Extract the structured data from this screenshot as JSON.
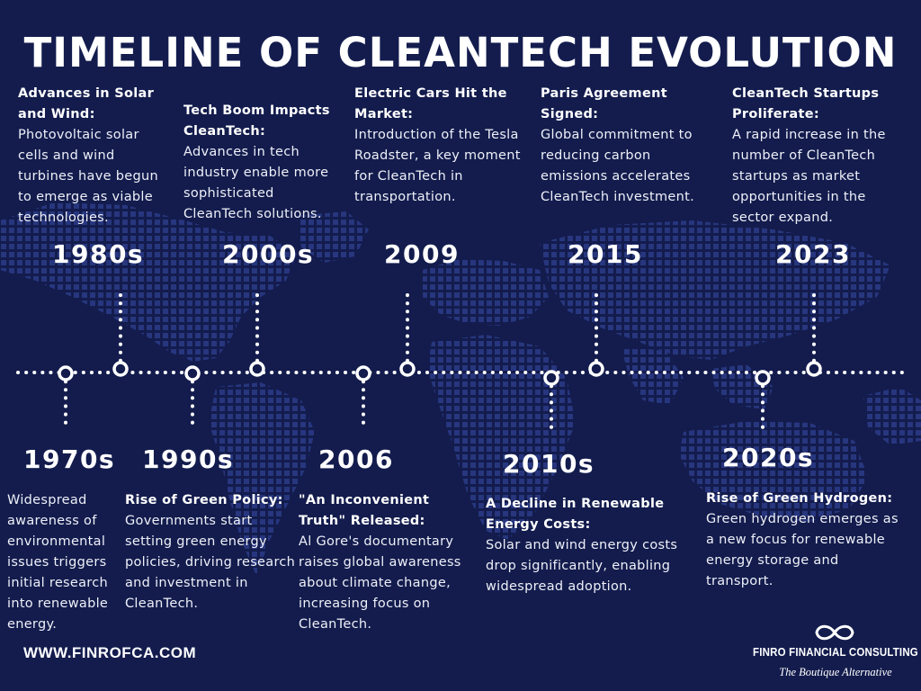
{
  "title": "TIMELINE OF CLEANTECH EVOLUTION",
  "colors": {
    "background": "#131c4d",
    "map": "#2b3b87",
    "accent": "#ffffff"
  },
  "events": [
    {
      "year": "1970s",
      "heading": "",
      "body": "Widespread awareness of environmental issues triggers initial research into renewable energy."
    },
    {
      "year": "1980s",
      "heading": "Advances in Solar and Wind:",
      "body": "Photovoltaic solar cells and wind turbines have begun to emerge as viable technologies."
    },
    {
      "year": "1990s",
      "heading": "Rise of Green Policy:",
      "body": "Governments start setting green energy policies, driving research and investment in CleanTech."
    },
    {
      "year": "2000s",
      "heading": "Tech Boom Impacts CleanTech:",
      "body": "Advances in tech industry enable more sophisticated CleanTech solutions."
    },
    {
      "year": "2006",
      "heading": "\"An Inconvenient Truth\" Released:",
      "body": "Al Gore's documentary raises global awareness about climate change, increasing focus on CleanTech."
    },
    {
      "year": "2009",
      "heading": "Electric Cars Hit the Market:",
      "body": "Introduction of the Tesla Roadster, a key moment for CleanTech in transportation."
    },
    {
      "year": "2010s",
      "heading": "A Decline in Renewable Energy Costs:",
      "body": "Solar and wind energy costs drop significantly, enabling widespread adoption."
    },
    {
      "year": "2015",
      "heading": "Paris Agreement Signed:",
      "body": "Global commitment to reducing carbon emissions accelerates CleanTech investment."
    },
    {
      "year": "2020s",
      "heading": "Rise of Green Hydrogen:",
      "body": "Green hydrogen emerges as a new focus for renewable energy storage and transport."
    },
    {
      "year": "2023",
      "heading": "CleanTech Startups Proliferate:",
      "body": "A rapid increase in the number of CleanTech startups as market opportunities in the sector expand."
    }
  ],
  "footer": {
    "website": "WWW.FINROFCA.COM",
    "brand": "FINRO FINANCIAL CONSULTING",
    "tagline": "The Boutique Alternative",
    "logo_icon": "infinity-icon"
  }
}
